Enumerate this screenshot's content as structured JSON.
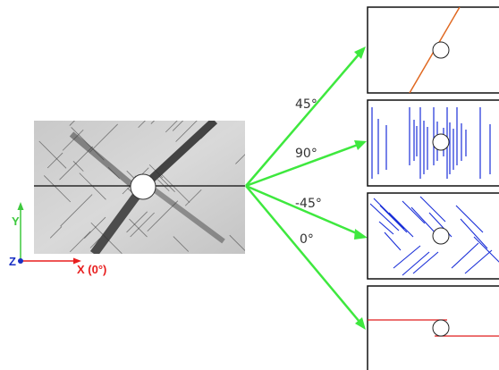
{
  "angles": [
    {
      "label": "45°"
    },
    {
      "label": "90°"
    },
    {
      "label": "-45°"
    },
    {
      "label": "0°"
    }
  ],
  "axes": {
    "y_label": "Y",
    "z_label": "Z",
    "x_label": "X (0°)"
  },
  "colors": {
    "arrow": "#3ee83e",
    "orange_crack": "#e06820",
    "blue_crack": "#1a2fd8",
    "red_crack": "#e01e1e",
    "y_axis": "#3ec93e",
    "x_axis": "#e81f1f",
    "z_axis": "#1a2fc4"
  },
  "icons": {
    "specimen": "cracked-plate-with-hole",
    "panels": [
      "orange-diagonal-crack",
      "blue-vertical-cracks",
      "blue-diagonal-cracks",
      "red-horizontal-crack"
    ]
  }
}
